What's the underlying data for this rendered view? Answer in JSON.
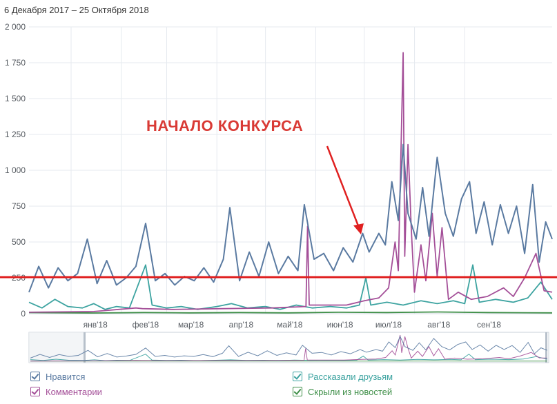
{
  "header": {
    "date_range": "6 Декабря 2017 – 25 Октября 2018"
  },
  "annotation": {
    "text": "НАЧАЛО КОНКУРСА"
  },
  "colors": {
    "likes": "#5a7aa1",
    "comments": "#a44f98",
    "shares": "#3ca3a0",
    "hidden": "#3f8f48",
    "threshold": "#e02020",
    "annotation": "#d93a35",
    "grid": "#e6eaef",
    "axis_text": "#555a60"
  },
  "legend": [
    {
      "key": "likes",
      "label": "Нравится"
    },
    {
      "key": "shares",
      "label": "Рассказали друзьям"
    },
    {
      "key": "comments",
      "label": "Комментарии"
    },
    {
      "key": "hidden",
      "label": "Скрыли из новостей"
    }
  ],
  "chart_data": {
    "type": "line",
    "x_start": "2017-12-06",
    "x_end": "2018-10-25",
    "ylim": [
      0,
      2000
    ],
    "y_ticks": [
      {
        "value": 0,
        "label": "0"
      },
      {
        "value": 250,
        "label": "250"
      },
      {
        "value": 500,
        "label": "500"
      },
      {
        "value": 750,
        "label": "750"
      },
      {
        "value": 1000,
        "label": "1 000"
      },
      {
        "value": 1250,
        "label": "1 250"
      },
      {
        "value": 1500,
        "label": "1 500"
      },
      {
        "value": 1750,
        "label": "1 750"
      },
      {
        "value": 2000,
        "label": "2 000"
      }
    ],
    "x_ticks": [
      {
        "date": "2018-01-01",
        "label": "янв'18"
      },
      {
        "date": "2018-02-01",
        "label": "фев'18"
      },
      {
        "date": "2018-03-01",
        "label": "мар'18"
      },
      {
        "date": "2018-04-01",
        "label": "апр'18"
      },
      {
        "date": "2018-05-01",
        "label": "май'18"
      },
      {
        "date": "2018-06-01",
        "label": "июн'18"
      },
      {
        "date": "2018-07-01",
        "label": "июл'18"
      },
      {
        "date": "2018-08-01",
        "label": "авг'18"
      },
      {
        "date": "2018-09-01",
        "label": "сен'18"
      }
    ],
    "grid": true,
    "threshold_value": 255,
    "series": [
      {
        "name": "Нравится",
        "key": "likes",
        "points": [
          [
            "2017-12-06",
            150
          ],
          [
            "2017-12-12",
            330
          ],
          [
            "2017-12-18",
            180
          ],
          [
            "2017-12-24",
            320
          ],
          [
            "2017-12-30",
            230
          ],
          [
            "2018-01-05",
            280
          ],
          [
            "2018-01-11",
            520
          ],
          [
            "2018-01-17",
            210
          ],
          [
            "2018-01-23",
            370
          ],
          [
            "2018-01-29",
            200
          ],
          [
            "2018-02-04",
            250
          ],
          [
            "2018-02-10",
            330
          ],
          [
            "2018-02-16",
            630
          ],
          [
            "2018-02-22",
            230
          ],
          [
            "2018-02-28",
            280
          ],
          [
            "2018-03-06",
            200
          ],
          [
            "2018-03-12",
            260
          ],
          [
            "2018-03-18",
            230
          ],
          [
            "2018-03-24",
            320
          ],
          [
            "2018-03-30",
            220
          ],
          [
            "2018-04-05",
            380
          ],
          [
            "2018-04-09",
            740
          ],
          [
            "2018-04-15",
            230
          ],
          [
            "2018-04-21",
            430
          ],
          [
            "2018-04-27",
            260
          ],
          [
            "2018-05-03",
            500
          ],
          [
            "2018-05-09",
            280
          ],
          [
            "2018-05-15",
            400
          ],
          [
            "2018-05-21",
            300
          ],
          [
            "2018-05-25",
            760
          ],
          [
            "2018-05-31",
            380
          ],
          [
            "2018-06-06",
            420
          ],
          [
            "2018-06-12",
            300
          ],
          [
            "2018-06-18",
            460
          ],
          [
            "2018-06-24",
            360
          ],
          [
            "2018-06-30",
            560
          ],
          [
            "2018-07-04",
            430
          ],
          [
            "2018-07-10",
            560
          ],
          [
            "2018-07-14",
            480
          ],
          [
            "2018-07-18",
            920
          ],
          [
            "2018-07-22",
            650
          ],
          [
            "2018-07-25",
            1180
          ],
          [
            "2018-07-28",
            700
          ],
          [
            "2018-08-02",
            520
          ],
          [
            "2018-08-06",
            880
          ],
          [
            "2018-08-10",
            540
          ],
          [
            "2018-08-15",
            1090
          ],
          [
            "2018-08-20",
            700
          ],
          [
            "2018-08-25",
            540
          ],
          [
            "2018-08-30",
            800
          ],
          [
            "2018-09-04",
            920
          ],
          [
            "2018-09-08",
            560
          ],
          [
            "2018-09-13",
            780
          ],
          [
            "2018-09-18",
            480
          ],
          [
            "2018-09-23",
            760
          ],
          [
            "2018-09-28",
            560
          ],
          [
            "2018-10-03",
            750
          ],
          [
            "2018-10-08",
            420
          ],
          [
            "2018-10-13",
            900
          ],
          [
            "2018-10-17",
            360
          ],
          [
            "2018-10-21",
            640
          ],
          [
            "2018-10-25",
            520
          ]
        ]
      },
      {
        "name": "Комментарии",
        "key": "comments",
        "points": [
          [
            "2017-12-06",
            10
          ],
          [
            "2018-01-15",
            15
          ],
          [
            "2018-02-10",
            40
          ],
          [
            "2018-02-14",
            35
          ],
          [
            "2018-03-05",
            30
          ],
          [
            "2018-04-05",
            35
          ],
          [
            "2018-05-05",
            40
          ],
          [
            "2018-05-26",
            50
          ],
          [
            "2018-05-27",
            610
          ],
          [
            "2018-05-28",
            60
          ],
          [
            "2018-06-20",
            60
          ],
          [
            "2018-07-01",
            90
          ],
          [
            "2018-07-10",
            110
          ],
          [
            "2018-07-16",
            180
          ],
          [
            "2018-07-20",
            500
          ],
          [
            "2018-07-22",
            300
          ],
          [
            "2018-07-25",
            1820
          ],
          [
            "2018-07-26",
            400
          ],
          [
            "2018-07-28",
            1180
          ],
          [
            "2018-07-30",
            600
          ],
          [
            "2018-08-01",
            150
          ],
          [
            "2018-08-05",
            480
          ],
          [
            "2018-08-08",
            230
          ],
          [
            "2018-08-12",
            700
          ],
          [
            "2018-08-15",
            260
          ],
          [
            "2018-08-18",
            600
          ],
          [
            "2018-08-22",
            100
          ],
          [
            "2018-08-28",
            150
          ],
          [
            "2018-09-05",
            100
          ],
          [
            "2018-09-15",
            120
          ],
          [
            "2018-09-25",
            180
          ],
          [
            "2018-10-01",
            120
          ],
          [
            "2018-10-08",
            250
          ],
          [
            "2018-10-15",
            420
          ],
          [
            "2018-10-20",
            160
          ],
          [
            "2018-10-25",
            150
          ]
        ]
      },
      {
        "name": "Рассказали друзьям",
        "key": "shares",
        "points": [
          [
            "2017-12-06",
            80
          ],
          [
            "2017-12-14",
            40
          ],
          [
            "2017-12-22",
            100
          ],
          [
            "2017-12-30",
            50
          ],
          [
            "2018-01-08",
            40
          ],
          [
            "2018-01-15",
            70
          ],
          [
            "2018-01-22",
            30
          ],
          [
            "2018-01-29",
            50
          ],
          [
            "2018-02-06",
            40
          ],
          [
            "2018-02-16",
            340
          ],
          [
            "2018-02-20",
            60
          ],
          [
            "2018-03-01",
            40
          ],
          [
            "2018-03-10",
            50
          ],
          [
            "2018-03-20",
            30
          ],
          [
            "2018-04-01",
            50
          ],
          [
            "2018-04-10",
            70
          ],
          [
            "2018-04-20",
            40
          ],
          [
            "2018-05-01",
            50
          ],
          [
            "2018-05-10",
            30
          ],
          [
            "2018-05-20",
            60
          ],
          [
            "2018-05-30",
            40
          ],
          [
            "2018-06-10",
            50
          ],
          [
            "2018-06-20",
            40
          ],
          [
            "2018-06-28",
            60
          ],
          [
            "2018-07-02",
            250
          ],
          [
            "2018-07-05",
            60
          ],
          [
            "2018-07-15",
            80
          ],
          [
            "2018-07-25",
            60
          ],
          [
            "2018-08-05",
            90
          ],
          [
            "2018-08-15",
            70
          ],
          [
            "2018-08-25",
            90
          ],
          [
            "2018-09-01",
            70
          ],
          [
            "2018-09-06",
            340
          ],
          [
            "2018-09-10",
            80
          ],
          [
            "2018-09-20",
            100
          ],
          [
            "2018-10-01",
            80
          ],
          [
            "2018-10-10",
            110
          ],
          [
            "2018-10-18",
            220
          ],
          [
            "2018-10-25",
            100
          ]
        ]
      },
      {
        "name": "Скрыли из новостей",
        "key": "hidden",
        "points": [
          [
            "2017-12-06",
            8
          ],
          [
            "2018-01-15",
            5
          ],
          [
            "2018-02-15",
            8
          ],
          [
            "2018-03-15",
            6
          ],
          [
            "2018-04-15",
            8
          ],
          [
            "2018-05-15",
            6
          ],
          [
            "2018-06-15",
            10
          ],
          [
            "2018-07-15",
            8
          ],
          [
            "2018-08-15",
            12
          ],
          [
            "2018-09-15",
            8
          ],
          [
            "2018-10-25",
            6
          ]
        ]
      }
    ]
  }
}
